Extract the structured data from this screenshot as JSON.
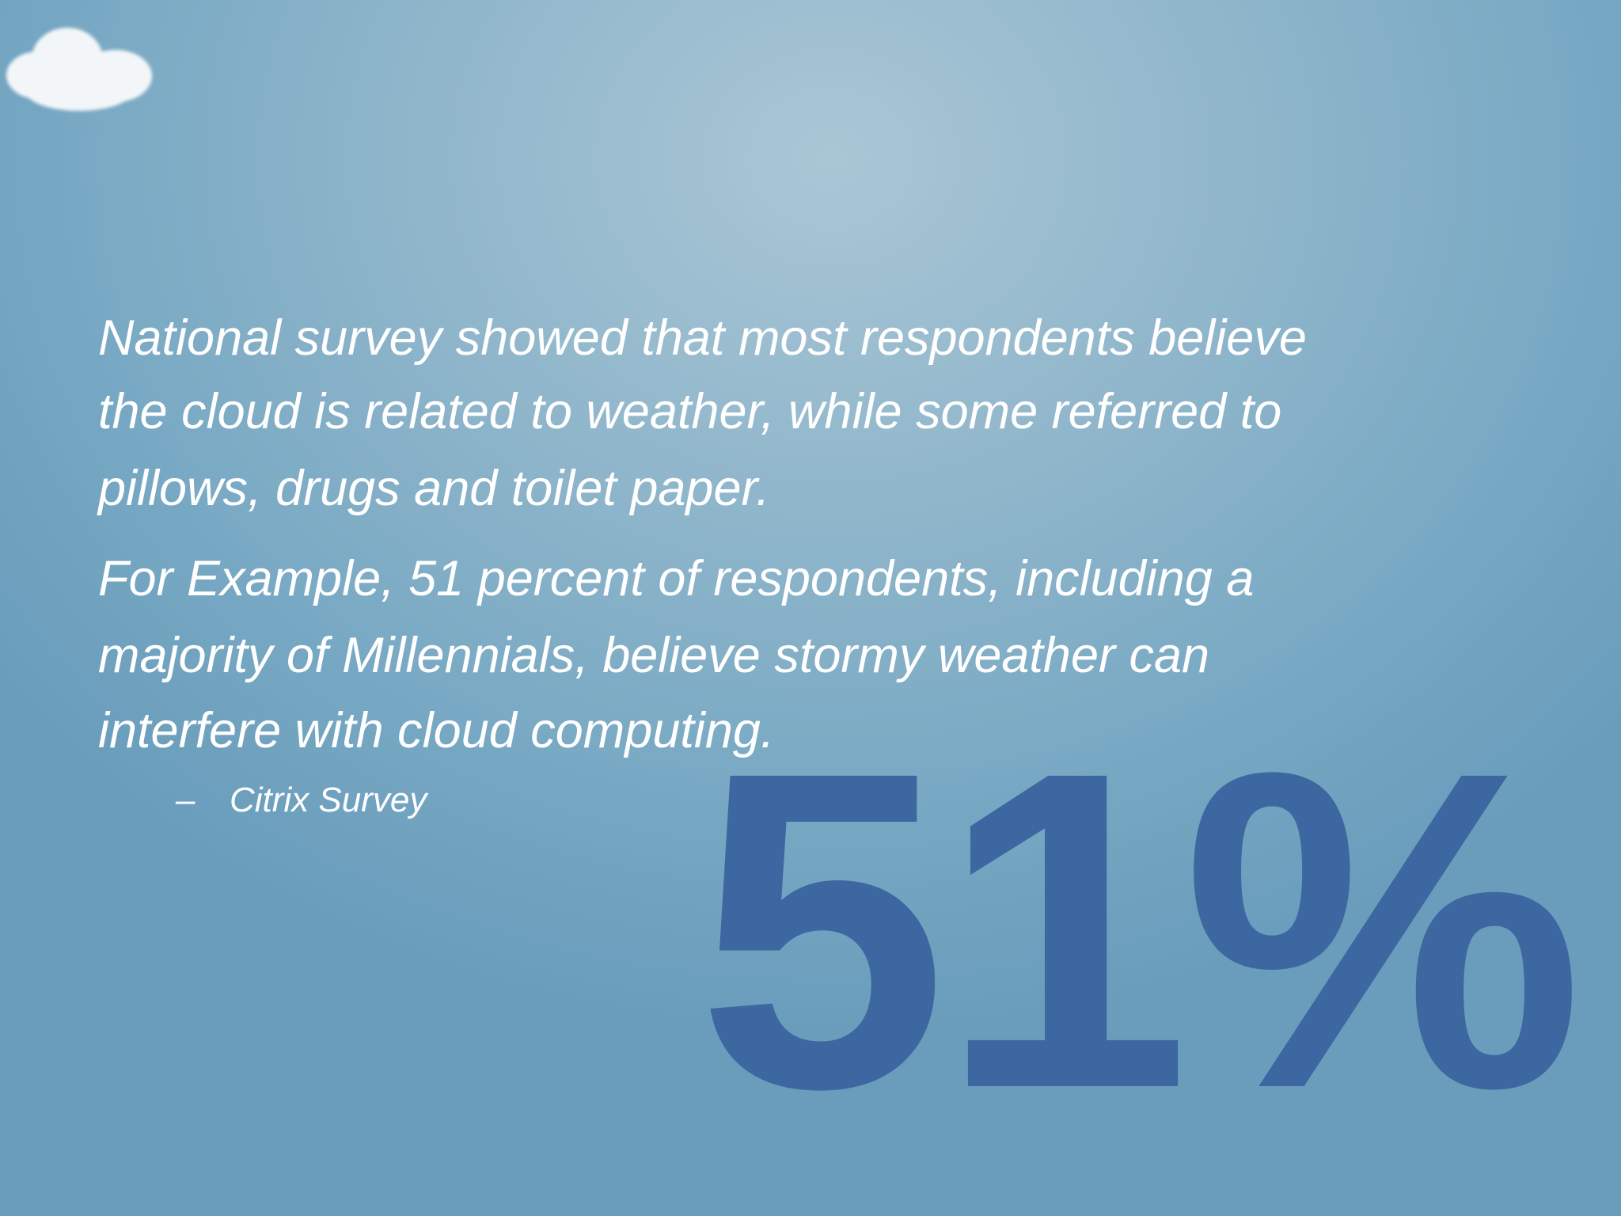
{
  "slide": {
    "paragraphs": [
      {
        "lines": [
          "National survey showed that most respondents believe",
          "the cloud is related to weather, while some referred to",
          "pillows, drugs and toilet paper."
        ]
      },
      {
        "lines": [
          "For Example, 51 percent of respondents, including a",
          "majority of Millennials, believe stormy weather can",
          "interfere with cloud computing."
        ]
      }
    ],
    "attribution": {
      "marker": "–",
      "text": "Citrix Survey"
    },
    "big_stat": "51%"
  }
}
